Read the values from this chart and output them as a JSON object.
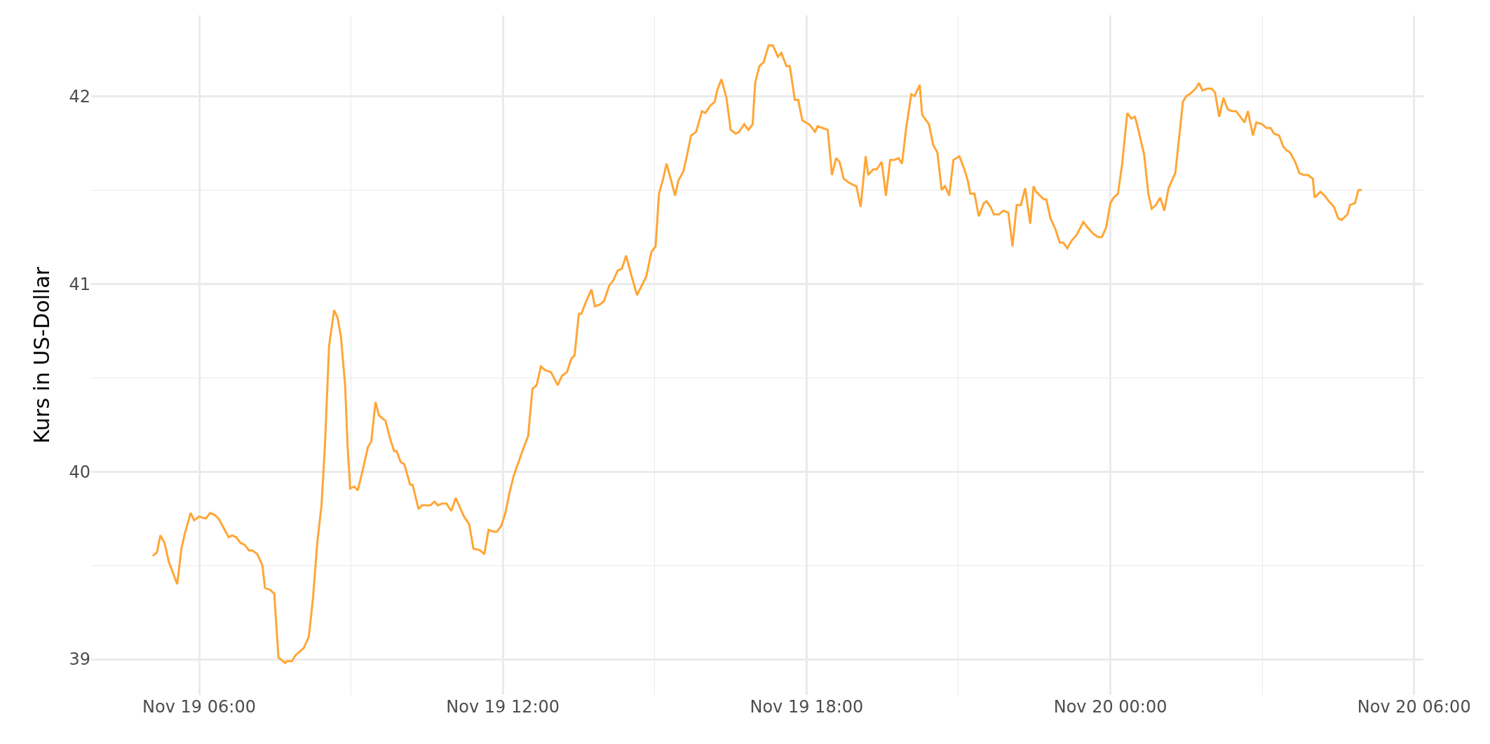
{
  "chart_data": {
    "type": "line",
    "ylabel": "Kurs in US-Dollar",
    "grid": true,
    "marker": "none",
    "line_style": "solid",
    "xlim": [
      "--11-19T03:52",
      "--11-20T06:11"
    ],
    "xticks": [
      {
        "value": "--11-19T06:00",
        "label": "Nov 19 06:00"
      },
      {
        "value": "--11-19T09:00",
        "label": null
      },
      {
        "value": "--11-19T12:00",
        "label": "Nov 19 12:00"
      },
      {
        "value": "--11-19T15:00",
        "label": null
      },
      {
        "value": "--11-19T18:00",
        "label": "Nov 19 18:00"
      },
      {
        "value": "--11-19T21:00",
        "label": null
      },
      {
        "value": "--11-20T00:00",
        "label": "Nov 20 00:00"
      },
      {
        "value": "--11-20T03:00",
        "label": null
      },
      {
        "value": "--11-20T06:00",
        "label": "Nov 20 06:00"
      }
    ],
    "ylim": [
      38.81,
      42.43
    ],
    "yticks": [
      39,
      {
        "value": 39.5,
        "label": null
      },
      40,
      {
        "value": 40.5,
        "label": null
      },
      41,
      {
        "value": 41.5,
        "label": null
      },
      42
    ],
    "x": [
      "--11-19T05:05",
      "--11-19T05:10",
      "--11-19T05:14",
      "--11-19T05:19",
      "--11-19T05:24",
      "--11-19T05:29",
      "--11-19T05:34",
      "--11-19T05:39",
      "--11-19T05:43",
      "--11-19T05:50",
      "--11-19T05:54",
      "--11-19T06:00",
      "--11-19T06:08",
      "--11-19T06:13",
      "--11-19T06:18",
      "--11-19T06:23",
      "--11-19T06:29",
      "--11-19T06:35",
      "--11-19T06:39",
      "--11-19T06:44",
      "--11-19T06:49",
      "--11-19T06:54",
      "--11-19T06:59",
      "--11-19T07:03",
      "--11-19T07:09",
      "--11-19T07:15",
      "--11-19T07:18",
      "--11-19T07:24",
      "--11-19T07:29",
      "--11-19T07:34",
      "--11-19T07:42",
      "--11-19T07:44",
      "--11-19T07:50",
      "--11-19T07:54",
      "--11-19T07:59",
      "--11-19T08:04",
      "--11-19T08:10",
      "--11-19T08:15",
      "--11-19T08:20",
      "--11-19T08:25",
      "--11-19T08:29",
      "--11-19T08:34",
      "--11-19T08:40",
      "--11-19T08:44",
      "--11-19T08:48",
      "--11-19T08:53",
      "--11-19T08:56",
      "--11-19T08:59",
      "--11-19T09:04",
      "--11-19T09:08",
      "--11-19T09:14",
      "--11-19T09:20",
      "--11-19T09:24",
      "--11-19T09:29",
      "--11-19T09:33",
      "--11-19T09:41",
      "--11-19T09:46",
      "--11-19T09:51",
      "--11-19T09:54",
      "--11-19T09:59",
      "--11-19T10:03",
      "--11-19T10:07",
      "--11-19T10:10",
      "--11-19T10:13",
      "--11-19T10:20",
      "--11-19T10:24",
      "--11-19T10:29",
      "--11-19T10:34",
      "--11-19T10:39",
      "--11-19T10:43",
      "--11-19T10:48",
      "--11-19T10:53",
      "--11-19T10:59",
      "--11-19T11:04",
      "--11-19T11:09",
      "--11-19T11:14",
      "--11-19T11:20",
      "--11-19T11:25",
      "--11-19T11:33",
      "--11-19T11:38",
      "--11-19T11:43",
      "--11-19T11:49",
      "--11-19T11:53",
      "--11-19T11:58",
      "--11-19T12:03",
      "--11-19T12:08",
      "--11-19T12:13",
      "--11-19T12:24",
      "--11-19T12:30",
      "--11-19T12:35",
      "--11-19T12:40",
      "--11-19T12:45",
      "--11-19T12:50",
      "--11-19T12:57",
      "--11-19T13:05",
      "--11-19T13:10",
      "--11-19T13:16",
      "--11-19T13:21",
      "--11-19T13:25",
      "--11-19T13:30",
      "--11-19T13:33",
      "--11-19T13:39",
      "--11-19T13:45",
      "--11-19T13:49",
      "--11-19T13:55",
      "--11-19T14:00",
      "--11-19T14:06",
      "--11-19T14:11",
      "--11-19T14:16",
      "--11-19T14:21",
      "--11-19T14:26",
      "--11-19T14:32",
      "--11-19T14:39",
      "--11-19T14:50",
      "--11-19T14:56",
      "--11-19T15:01",
      "--11-19T15:05",
      "--11-19T15:10",
      "--11-19T15:14",
      "--11-19T15:20",
      "--11-19T15:24",
      "--11-19T15:28",
      "--11-19T15:34",
      "--11-19T15:38",
      "--11-19T15:43",
      "--11-19T15:49",
      "--11-19T15:56",
      "--11-19T16:00",
      "--11-19T16:06",
      "--11-19T16:11",
      "--11-19T16:14",
      "--11-19T16:19",
      "--11-19T16:25",
      "--11-19T16:30",
      "--11-19T16:36",
      "--11-19T16:40",
      "--11-19T16:46",
      "--11-19T16:51",
      "--11-19T16:56",
      "--11-19T16:59",
      "--11-19T17:04",
      "--11-19T17:09",
      "--11-19T17:15",
      "--11-19T17:20",
      "--11-19T17:26",
      "--11-19T17:30",
      "--11-19T17:36",
      "--11-19T17:40",
      "--11-19T17:46",
      "--11-19T17:50",
      "--11-19T17:55",
      "--11-19T18:03",
      "--11-19T18:10",
      "--11-19T18:13",
      "--11-19T18:19",
      "--11-19T18:25",
      "--11-19T18:30",
      "--11-19T18:35",
      "--11-19T18:39",
      "--11-19T18:44",
      "--11-19T18:50",
      "--11-19T18:54",
      "--11-19T18:59",
      "--11-19T19:04",
      "--11-19T19:10",
      "--11-19T19:13",
      "--11-19T19:19",
      "--11-19T19:23",
      "--11-19T19:29",
      "--11-19T19:34",
      "--11-19T19:39",
      "--11-19T19:44",
      "--11-19T19:49",
      "--11-19T19:53",
      "--11-19T19:58",
      "--11-19T20:04",
      "--11-19T20:08",
      "--11-19T20:14",
      "--11-19T20:17",
      "--11-19T20:25",
      "--11-19T20:30",
      "--11-19T20:35",
      "--11-19T20:40",
      "--11-19T20:44",
      "--11-19T20:49",
      "--11-19T20:54",
      "--11-19T21:01",
      "--11-19T21:07",
      "--11-19T21:11",
      "--11-19T21:14",
      "--11-19T21:19",
      "--11-19T21:24",
      "--11-19T21:30",
      "--11-19T21:33",
      "--11-19T21:38",
      "--11-19T21:42",
      "--11-19T21:48",
      "--11-19T21:53",
      "--11-19T21:59",
      "--11-19T22:04",
      "--11-19T22:09",
      "--11-19T22:14",
      "--11-19T22:19",
      "--11-19T22:25",
      "--11-19T22:29",
      "--11-19T22:32",
      "--11-19T22:41",
      "--11-19T22:44",
      "--11-19T22:49",
      "--11-19T22:55",
      "--11-19T23:00",
      "--11-19T23:04",
      "--11-19T23:09",
      "--11-19T23:14",
      "--11-19T23:20",
      "--11-19T23:28",
      "--11-19T23:33",
      "--11-19T23:39",
      "--11-19T23:45",
      "--11-19T23:50",
      "--11-19T23:55",
      "--11-20T00:00",
      "--11-20T00:04",
      "--11-20T00:09",
      "--11-20T00:14",
      "--11-20T00:20",
      "--11-20T00:25",
      "--11-20T00:29",
      "--11-20T00:31",
      "--11-20T00:40",
      "--11-20T00:45",
      "--11-20T00:49",
      "--11-20T00:54",
      "--11-20T00:59",
      "--11-20T01:04",
      "--11-20T01:09",
      "--11-20T01:14",
      "--11-20T01:17",
      "--11-20T01:26",
      "--11-20T01:30",
      "--11-20T01:34",
      "--11-20T01:41",
      "--11-20T01:45",
      "--11-20T01:49",
      "--11-20T01:55",
      "--11-20T02:00",
      "--11-20T02:04",
      "--11-20T02:09",
      "--11-20T02:14",
      "--11-20T02:19",
      "--11-20T02:24",
      "--11-20T02:29",
      "--11-20T02:34",
      "--11-20T02:39",
      "--11-20T02:43",
      "--11-20T02:49",
      "--11-20T02:53",
      "--11-20T03:00",
      "--11-20T03:05",
      "--11-20T03:10",
      "--11-20T03:14",
      "--11-20T03:20",
      "--11-20T03:25",
      "--11-20T03:29",
      "--11-20T03:33",
      "--11-20T03:39",
      "--11-20T03:44",
      "--11-20T03:49",
      "--11-20T03:54",
      "--11-20T04:00",
      "--11-20T04:02",
      "--11-20T04:09",
      "--11-20T04:14",
      "--11-20T04:19",
      "--11-20T04:25",
      "--11-20T04:30",
      "--11-20T04:34",
      "--11-20T04:41",
      "--11-20T04:44",
      "--11-20T04:50",
      "--11-20T04:54",
      "--11-20T04:58"
    ],
    "series": [
      {
        "color": "#ffa636",
        "values": [
          39.55,
          39.57,
          39.66,
          39.62,
          39.52,
          39.46,
          39.4,
          39.59,
          39.67,
          39.78,
          39.74,
          39.76,
          39.75,
          39.78,
          39.77,
          39.75,
          39.7,
          39.65,
          39.66,
          39.65,
          39.62,
          39.61,
          39.58,
          39.58,
          39.56,
          39.5,
          39.38,
          39.37,
          39.35,
          39.01,
          38.98,
          38.99,
          38.99,
          39.02,
          39.04,
          39.06,
          39.12,
          39.33,
          39.62,
          39.82,
          40.13,
          40.67,
          40.86,
          40.82,
          40.72,
          40.46,
          40.13,
          39.91,
          39.92,
          39.9,
          40.01,
          40.13,
          40.16,
          40.37,
          40.3,
          40.27,
          40.18,
          40.11,
          40.11,
          40.05,
          40.04,
          39.98,
          39.93,
          39.93,
          39.8,
          39.82,
          39.82,
          39.82,
          39.84,
          39.82,
          39.83,
          39.83,
          39.79,
          39.86,
          39.81,
          39.76,
          39.72,
          39.59,
          39.58,
          39.56,
          39.69,
          39.68,
          39.68,
          39.71,
          39.78,
          39.89,
          39.98,
          40.12,
          40.19,
          40.44,
          40.46,
          40.56,
          40.54,
          40.53,
          40.46,
          40.51,
          40.53,
          40.6,
          40.62,
          40.84,
          40.84,
          40.91,
          40.97,
          40.88,
          40.89,
          40.91,
          40.99,
          41.02,
          41.07,
          41.08,
          41.15,
          41.05,
          40.94,
          41.04,
          41.17,
          41.2,
          41.48,
          41.56,
          41.64,
          41.54,
          41.47,
          41.55,
          41.6,
          41.68,
          41.79,
          41.81,
          41.92,
          41.91,
          41.95,
          41.97,
          42.03,
          42.09,
          41.99,
          41.82,
          41.8,
          41.81,
          41.85,
          41.82,
          41.85,
          42.07,
          42.16,
          42.18,
          42.27,
          42.27,
          42.21,
          42.23,
          42.16,
          42.16,
          41.98,
          41.98,
          41.87,
          41.85,
          41.81,
          41.84,
          41.83,
          41.82,
          41.58,
          41.67,
          41.65,
          41.56,
          41.54,
          41.53,
          41.52,
          41.41,
          41.68,
          41.58,
          41.61,
          41.61,
          41.65,
          41.47,
          41.66,
          41.66,
          41.67,
          41.64,
          41.83,
          42.01,
          42.0,
          42.06,
          41.9,
          41.85,
          41.74,
          41.7,
          41.5,
          41.52,
          41.47,
          41.66,
          41.68,
          41.61,
          41.55,
          41.48,
          41.48,
          41.36,
          41.43,
          41.44,
          41.41,
          41.37,
          41.37,
          41.39,
          41.38,
          41.2,
          41.42,
          41.42,
          41.51,
          41.32,
          41.52,
          41.49,
          41.45,
          41.45,
          41.35,
          41.29,
          41.22,
          41.22,
          41.19,
          41.23,
          41.26,
          41.33,
          41.3,
          41.27,
          41.25,
          41.25,
          41.3,
          41.43,
          41.46,
          41.48,
          41.64,
          41.91,
          41.88,
          41.89,
          41.86,
          41.69,
          41.48,
          41.4,
          41.42,
          41.46,
          41.39,
          41.51,
          41.56,
          41.59,
          41.97,
          42.0,
          42.01,
          42.04,
          42.07,
          42.03,
          42.04,
          42.04,
          42.02,
          41.89,
          41.99,
          41.93,
          41.92,
          41.92,
          41.89,
          41.86,
          41.92,
          41.79,
          41.86,
          41.85,
          41.83,
          41.83,
          41.8,
          41.79,
          41.73,
          41.71,
          41.7,
          41.65,
          41.59,
          41.58,
          41.58,
          41.56,
          41.46,
          41.49,
          41.47,
          41.44,
          41.41,
          41.35,
          41.34,
          41.37,
          41.42,
          41.43,
          41.5,
          41.5
        ]
      }
    ]
  }
}
